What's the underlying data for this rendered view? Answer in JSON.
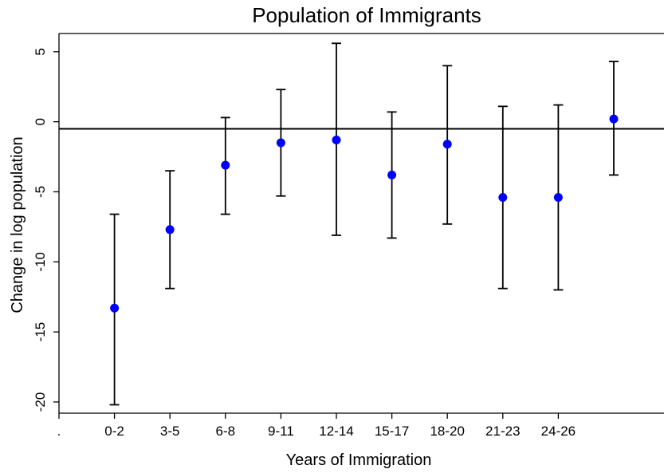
{
  "chart_data": {
    "type": "scatter",
    "title": "Population of Immigrants",
    "xlabel": "Years of Immigration",
    "ylabel": "Change in log population",
    "x_tick_labels": [
      ".",
      "0-2",
      "3-5",
      "6-8",
      "9-11",
      "12-14",
      "15-17",
      "18-20",
      "21-23",
      "24-26"
    ],
    "y_ticks": [
      5,
      0,
      -5,
      -10,
      -15,
      -20
    ],
    "ylim": [
      -20.8,
      6.3
    ],
    "reference_line_y": -0.5,
    "grid": false,
    "legend": "none",
    "series": [
      {
        "marker_color": "#0000ff",
        "errorbar_color": "#000000",
        "points": [
          {
            "x": "0-2",
            "y": -13.3,
            "low": -20.2,
            "high": -6.6
          },
          {
            "x": "3-5",
            "y": -7.7,
            "low": -11.9,
            "high": -3.5
          },
          {
            "x": "6-8",
            "y": -3.1,
            "low": -6.6,
            "high": 0.3
          },
          {
            "x": "9-11",
            "y": -1.5,
            "low": -5.3,
            "high": 2.3
          },
          {
            "x": "12-14",
            "y": -1.3,
            "low": -8.1,
            "high": 5.6
          },
          {
            "x": "15-17",
            "y": -3.8,
            "low": -8.3,
            "high": 0.7
          },
          {
            "x": "18-20",
            "y": -1.6,
            "low": -7.3,
            "high": 4.0
          },
          {
            "x": "21-23",
            "y": -5.4,
            "low": -11.9,
            "high": 1.1
          },
          {
            "x": "24-26",
            "y": -5.4,
            "low": -12.0,
            "high": 1.2
          },
          {
            "x": "",
            "y": 0.2,
            "low": -3.8,
            "high": 4.3
          }
        ]
      }
    ]
  }
}
